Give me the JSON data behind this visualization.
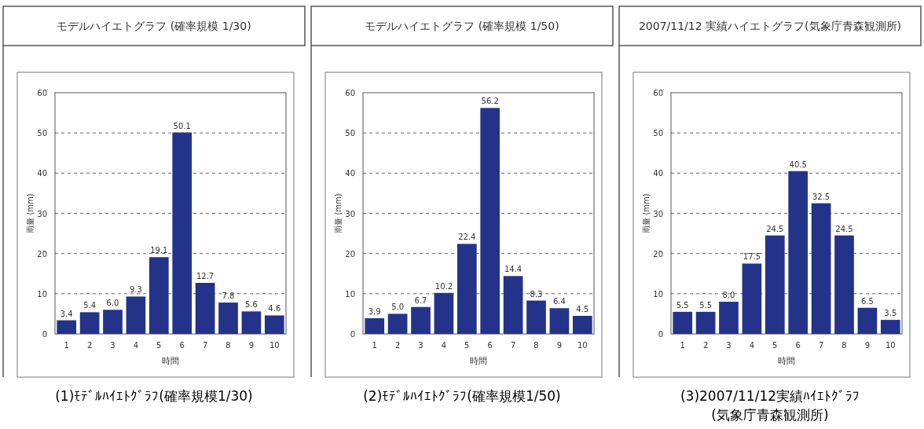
{
  "chart_data": [
    {
      "type": "bar",
      "title": "モデルハイエトグラフ (確率規模 1/30)",
      "xlabel": "時間",
      "ylabel": "雨量 (mm)",
      "categories": [
        "1",
        "2",
        "3",
        "4",
        "5",
        "6",
        "7",
        "8",
        "9",
        "10"
      ],
      "color": "#24338a",
      "values": [
        3.4,
        5.4,
        6.0,
        9.3,
        19.1,
        50.1,
        12.7,
        7.8,
        5.6,
        4.6
      ],
      "value_labels": [
        "3.4",
        "5.4",
        "6.0",
        "9.3",
        "19.1",
        "50.1",
        "12.7",
        "7.8",
        "5.6",
        "4.6"
      ],
      "ylim": [
        0,
        60
      ],
      "yticks": [
        0,
        10,
        20,
        30,
        40,
        50,
        60
      ],
      "grid": "y",
      "annotations": [
        "(1)ﾓﾃﾞﾙﾊｲｴﾄｸﾞﾗﾌ(確率規模1/30)"
      ]
    },
    {
      "type": "bar",
      "title": "モデルハイエトグラフ (確率規模 1/50)",
      "xlabel": "時間",
      "ylabel": "雨量 (mm)",
      "categories": [
        "1",
        "2",
        "3",
        "4",
        "5",
        "6",
        "7",
        "8",
        "9",
        "10"
      ],
      "color": "#24338a",
      "values": [
        3.9,
        5.0,
        6.7,
        10.2,
        22.4,
        56.2,
        14.4,
        8.3,
        6.4,
        4.5
      ],
      "value_labels": [
        "3.9",
        "5.0",
        "6.7",
        "10.2",
        "22.4",
        "56.2",
        "14.4",
        "8.3",
        "6.4",
        "4.5"
      ],
      "ylim": [
        0,
        60
      ],
      "yticks": [
        0,
        10,
        20,
        30,
        40,
        50,
        60
      ],
      "grid": "y",
      "annotations": [
        "(2)ﾓﾃﾞﾙﾊｲｴﾄｸﾞﾗﾌ(確率規模1/50)"
      ]
    },
    {
      "type": "bar",
      "title": "2007/11/12  実績ハイエトグラフ(気象庁青森観測所)",
      "xlabel": "時間",
      "ylabel": "雨量 (mm)",
      "categories": [
        "1",
        "2",
        "3",
        "4",
        "5",
        "6",
        "7",
        "8",
        "9",
        "10"
      ],
      "color": "#24338a",
      "values": [
        5.5,
        5.5,
        8.0,
        17.5,
        24.5,
        40.5,
        32.5,
        24.5,
        6.5,
        3.5
      ],
      "value_labels": [
        "5.5",
        "5.5",
        "8.0",
        "17.5",
        "24.5",
        "40.5",
        "32.5",
        "24.5",
        "6.5",
        "3.5"
      ],
      "ylim": [
        0,
        60
      ],
      "yticks": [
        0,
        10,
        20,
        30,
        40,
        50,
        60
      ],
      "grid": "y",
      "annotations": [
        "(3)2007/11/12実績ﾊｲｴﾄｸﾞﾗﾌ",
        "(気象庁青森観測所)"
      ]
    }
  ]
}
